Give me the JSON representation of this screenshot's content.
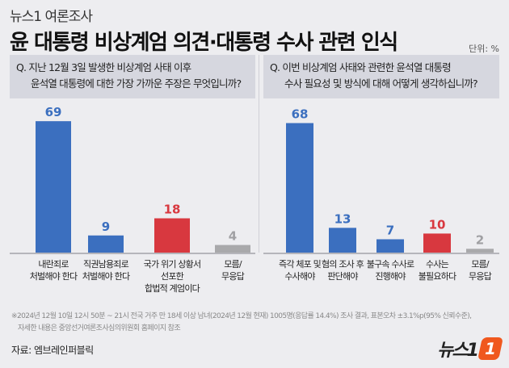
{
  "header": {
    "kicker": "뉴스1 여론조사",
    "title": "윤 대통령 비상계엄 의견·대통령 수사 관련 인식",
    "unit": "단위: %"
  },
  "colors": {
    "blue": "#3b6fbf",
    "red": "#d8383f",
    "gray": "#a9a9ab"
  },
  "chart_data": [
    {
      "type": "bar",
      "question": [
        "Q. 지난 12월 3일 발생한 비상계엄 사태 이후",
        "윤석열 대통령에 대한 가장 가까운 주장은 무엇입니까?"
      ],
      "categories": [
        "내란죄로\n처벌해야 한다",
        "직권남용죄로\n처벌해야 한다",
        "국가 위기 상황서\n선포한\n합법적 계엄이다",
        "모름/\n무응답"
      ],
      "values": [
        69,
        9,
        18,
        4
      ],
      "bar_colors": [
        "blue",
        "blue",
        "red",
        "gray"
      ],
      "ylim": [
        0,
        100
      ]
    },
    {
      "type": "bar",
      "question": [
        "Q. 이번 비상계엄 사태와 관련한 윤석열 대통령",
        "수사 필요성 및 방식에 대해 어떻게 생각하십니까?"
      ],
      "categories": [
        "즉각 체포 및\n수사해야",
        "혐의 조사 후\n판단해야",
        "불구속 수사로\n진행해야",
        "수사는\n불필요하다",
        "모름/\n무응답"
      ],
      "values": [
        68,
        13,
        7,
        10,
        2
      ],
      "bar_colors": [
        "blue",
        "blue",
        "blue",
        "red",
        "gray"
      ],
      "ylim": [
        0,
        100
      ]
    }
  ],
  "footnote": [
    "※2024년 12월 10일 12시 50분 ~ 21시 전국 거주 만 18세 이상 남녀(2024년 12월 현재) 1005명(응답률 14.4%) 조사 결과, 표본오차 ±3.1%p(95% 신뢰수준),",
    "자세한 내용은 중앙선거여론조사심의위원회 홈페이지 참조"
  ],
  "source": "자료: 엠브레인퍼블릭",
  "logo": "뉴스1"
}
